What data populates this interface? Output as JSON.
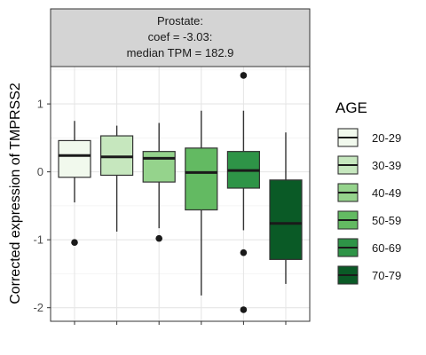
{
  "chart_data": {
    "type": "boxplot",
    "strip_title_lines": [
      "Prostate:",
      "coef = -3.03:",
      "median TPM = 182.9"
    ],
    "ylabel": "Corrected expression of TMPRSS2",
    "ylim": [
      -2.2,
      1.55
    ],
    "yticks": [
      1,
      0,
      -1,
      -2
    ],
    "ytick_labels": [
      "1",
      "0",
      "-1",
      "-2"
    ],
    "grid": true,
    "legend": {
      "title": "AGE",
      "placement": "right"
    },
    "series": [
      {
        "name": "20-29",
        "color": "#f1f9ed",
        "whisker_low": -0.45,
        "q1": -0.08,
        "median": 0.24,
        "q3": 0.46,
        "whisker_high": 0.75,
        "outliers": [
          -1.04
        ]
      },
      {
        "name": "30-39",
        "color": "#c6e7be",
        "whisker_low": -0.88,
        "q1": -0.05,
        "median": 0.22,
        "q3": 0.53,
        "whisker_high": 0.68,
        "outliers": []
      },
      {
        "name": "40-49",
        "color": "#95d38c",
        "whisker_low": -0.83,
        "q1": -0.15,
        "median": 0.2,
        "q3": 0.3,
        "whisker_high": 0.72,
        "outliers": [
          -0.98
        ]
      },
      {
        "name": "50-59",
        "color": "#63ba62",
        "whisker_low": -1.82,
        "q1": -0.56,
        "median": -0.01,
        "q3": 0.35,
        "whisker_high": 0.9,
        "outliers": []
      },
      {
        "name": "60-69",
        "color": "#2e9447",
        "whisker_low": -0.86,
        "q1": -0.24,
        "median": 0.02,
        "q3": 0.3,
        "whisker_high": 0.9,
        "outliers": [
          1.42,
          -1.19,
          -2.03
        ]
      },
      {
        "name": "70-79",
        "color": "#0a5a26",
        "whisker_low": -1.65,
        "q1": -1.29,
        "median": -0.76,
        "q3": -0.12,
        "whisker_high": 0.58,
        "outliers": []
      }
    ]
  }
}
